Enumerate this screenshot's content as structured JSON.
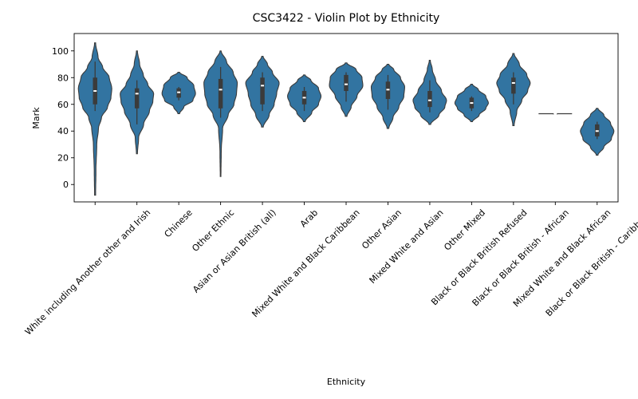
{
  "chart_data": {
    "type": "violin",
    "title": "CSC3422 - Violin Plot by Ethnicity",
    "xlabel": "Ethnicity",
    "ylabel": "Mark",
    "ylim": [
      -13,
      113
    ],
    "yticks": [
      0,
      20,
      40,
      60,
      80,
      100
    ],
    "color": "#3274a1",
    "edge_color": "#3b3b3b",
    "categories": [
      {
        "label": "White including Another other and Irish",
        "min": -8,
        "max": 106,
        "q1": 60,
        "median": 70,
        "q3": 80,
        "pmin": 55,
        "pmax": 92,
        "profile": [
          [
            -8,
            0.03
          ],
          [
            10,
            0.05
          ],
          [
            30,
            0.1
          ],
          [
            42,
            0.2
          ],
          [
            50,
            0.38
          ],
          [
            58,
            0.75
          ],
          [
            65,
            0.95
          ],
          [
            72,
            1.0
          ],
          [
            80,
            0.85
          ],
          [
            88,
            0.45
          ],
          [
            95,
            0.18
          ],
          [
            106,
            0.03
          ]
        ]
      },
      {
        "label": "Chinese",
        "min": 23,
        "max": 100,
        "q1": 57,
        "median": 68,
        "q3": 72,
        "pmin": 45,
        "pmax": 78,
        "profile": [
          [
            23,
            0.03
          ],
          [
            35,
            0.1
          ],
          [
            45,
            0.4
          ],
          [
            55,
            0.75
          ],
          [
            62,
            0.95
          ],
          [
            68,
            1.0
          ],
          [
            75,
            0.65
          ],
          [
            82,
            0.38
          ],
          [
            90,
            0.16
          ],
          [
            100,
            0.03
          ]
        ]
      },
      {
        "label": "Other Ethnic",
        "min": 53,
        "max": 84,
        "q1": 65,
        "median": 69,
        "q3": 72,
        "pmin": 63,
        "pmax": 73,
        "profile": [
          [
            53,
            0.05
          ],
          [
            58,
            0.3
          ],
          [
            63,
            0.85
          ],
          [
            68,
            1.0
          ],
          [
            74,
            0.9
          ],
          [
            80,
            0.5
          ],
          [
            84,
            0.05
          ]
        ]
      },
      {
        "label": "Asian or Asian British (all)",
        "min": 6,
        "max": 100,
        "q1": 57,
        "median": 71,
        "q3": 79,
        "pmin": 50,
        "pmax": 88,
        "profile": [
          [
            6,
            0.02
          ],
          [
            25,
            0.04
          ],
          [
            42,
            0.12
          ],
          [
            52,
            0.45
          ],
          [
            60,
            0.8
          ],
          [
            68,
            0.95
          ],
          [
            76,
            1.0
          ],
          [
            84,
            0.75
          ],
          [
            92,
            0.35
          ],
          [
            100,
            0.03
          ]
        ]
      },
      {
        "label": "Arab",
        "min": 43,
        "max": 96,
        "q1": 60,
        "median": 74,
        "q3": 80,
        "pmin": 55,
        "pmax": 84,
        "profile": [
          [
            43,
            0.05
          ],
          [
            52,
            0.4
          ],
          [
            60,
            0.7
          ],
          [
            68,
            0.85
          ],
          [
            76,
            1.0
          ],
          [
            84,
            0.6
          ],
          [
            90,
            0.3
          ],
          [
            96,
            0.04
          ]
        ]
      },
      {
        "label": "Mixed White and Black Caribbean",
        "min": 47,
        "max": 82,
        "q1": 60,
        "median": 65,
        "q3": 70,
        "pmin": 55,
        "pmax": 73,
        "profile": [
          [
            47,
            0.05
          ],
          [
            54,
            0.45
          ],
          [
            60,
            0.85
          ],
          [
            66,
            1.0
          ],
          [
            72,
            0.85
          ],
          [
            78,
            0.4
          ],
          [
            82,
            0.05
          ]
        ]
      },
      {
        "label": "Other Asian",
        "min": 51,
        "max": 91,
        "q1": 70,
        "median": 75,
        "q3": 82,
        "pmin": 62,
        "pmax": 84,
        "profile": [
          [
            51,
            0.05
          ],
          [
            58,
            0.3
          ],
          [
            66,
            0.65
          ],
          [
            74,
            1.0
          ],
          [
            80,
            0.95
          ],
          [
            86,
            0.6
          ],
          [
            91,
            0.05
          ]
        ]
      },
      {
        "label": "Mixed White and Asian",
        "min": 42,
        "max": 90,
        "q1": 64,
        "median": 71,
        "q3": 77,
        "pmin": 56,
        "pmax": 82,
        "profile": [
          [
            42,
            0.05
          ],
          [
            50,
            0.3
          ],
          [
            58,
            0.65
          ],
          [
            66,
            0.95
          ],
          [
            73,
            1.0
          ],
          [
            80,
            0.75
          ],
          [
            86,
            0.35
          ],
          [
            90,
            0.05
          ]
        ]
      },
      {
        "label": "Other Mixed",
        "min": 45,
        "max": 93,
        "q1": 58,
        "median": 63,
        "q3": 70,
        "pmin": 54,
        "pmax": 78,
        "profile": [
          [
            45,
            0.05
          ],
          [
            52,
            0.55
          ],
          [
            58,
            0.9
          ],
          [
            63,
            1.0
          ],
          [
            70,
            0.7
          ],
          [
            78,
            0.35
          ],
          [
            86,
            0.15
          ],
          [
            93,
            0.03
          ]
        ]
      },
      {
        "label": "Black or Black British Refused",
        "min": 47,
        "max": 75,
        "q1": 57,
        "median": 61,
        "q3": 65,
        "pmin": 55,
        "pmax": 66,
        "profile": [
          [
            47,
            0.05
          ],
          [
            52,
            0.45
          ],
          [
            57,
            0.85
          ],
          [
            61,
            1.0
          ],
          [
            66,
            0.85
          ],
          [
            71,
            0.4
          ],
          [
            75,
            0.05
          ]
        ]
      },
      {
        "label": "Black or Black British - African",
        "min": 44,
        "max": 98,
        "q1": 68,
        "median": 76,
        "q3": 80,
        "pmin": 60,
        "pmax": 84,
        "profile": [
          [
            44,
            0.04
          ],
          [
            55,
            0.2
          ],
          [
            63,
            0.5
          ],
          [
            70,
            0.85
          ],
          [
            76,
            1.0
          ],
          [
            82,
            0.8
          ],
          [
            90,
            0.35
          ],
          [
            98,
            0.04
          ]
        ]
      },
      {
        "label": "Mixed White and Black African",
        "min": 53,
        "max": 53,
        "q1": 53,
        "median": 53,
        "q3": 53,
        "pmin": 53,
        "pmax": 53,
        "profile": []
      },
      {
        "label": "Black or Black British - Caribbean",
        "min": 22,
        "max": 57,
        "q1": 36,
        "median": 40,
        "q3": 45,
        "pmin": 34,
        "pmax": 47,
        "profile": [
          [
            22,
            0.05
          ],
          [
            28,
            0.4
          ],
          [
            34,
            0.85
          ],
          [
            40,
            1.0
          ],
          [
            46,
            0.8
          ],
          [
            52,
            0.4
          ],
          [
            57,
            0.05
          ]
        ]
      }
    ]
  }
}
